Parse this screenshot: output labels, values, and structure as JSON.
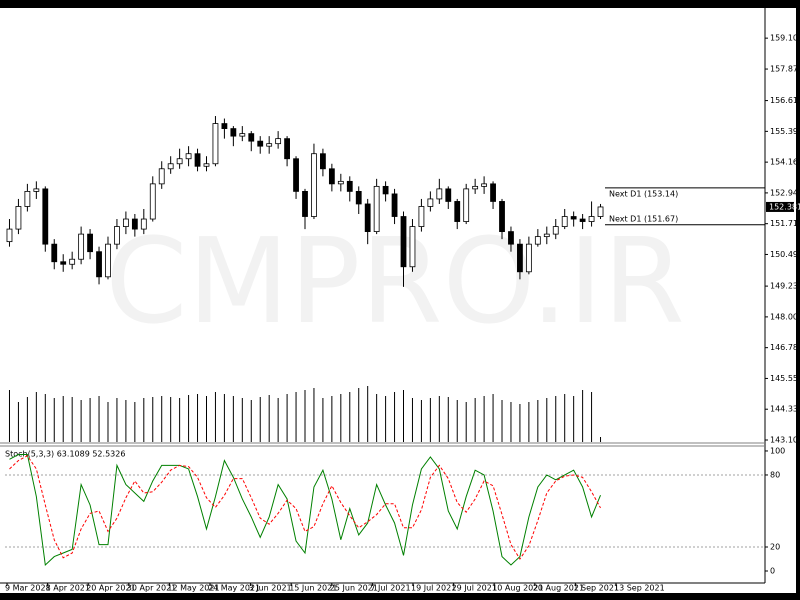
{
  "chart_data": [
    {
      "type": "candlestick",
      "watermark": "CMPRO.IR",
      "open": [
        151.0,
        151.5,
        152.4,
        153.0,
        153.1,
        150.9,
        150.2,
        150.1,
        150.3,
        151.3,
        150.6,
        149.6,
        150.9,
        151.6,
        151.9,
        151.5,
        151.9,
        153.3,
        153.9,
        154.1,
        154.3,
        154.5,
        154.0,
        154.1,
        155.7,
        155.5,
        155.2,
        155.3,
        155.0,
        154.8,
        154.9,
        155.1,
        154.3,
        153.0,
        152.0,
        154.5,
        153.9,
        153.3,
        153.4,
        153.0,
        152.5,
        151.4,
        153.2,
        152.9,
        152.0,
        150.0,
        151.6,
        152.4,
        152.7,
        153.1,
        152.6,
        151.8,
        153.1,
        153.2,
        153.3,
        152.6,
        151.4,
        150.9,
        149.8,
        150.9,
        151.2,
        151.3,
        151.6,
        152.0,
        151.9,
        151.8,
        152.0
      ],
      "high": [
        151.9,
        152.7,
        153.3,
        153.4,
        153.2,
        151.1,
        150.5,
        150.6,
        151.6,
        151.5,
        150.8,
        151.2,
        151.9,
        152.2,
        152.1,
        152.3,
        153.6,
        154.2,
        154.4,
        154.7,
        154.8,
        154.7,
        154.4,
        156.0,
        155.9,
        155.6,
        155.6,
        155.4,
        155.2,
        155.2,
        155.4,
        155.2,
        154.4,
        153.1,
        154.9,
        154.7,
        154.1,
        153.7,
        153.6,
        153.2,
        152.7,
        153.5,
        153.4,
        153.1,
        152.2,
        151.9,
        152.7,
        153.0,
        153.5,
        153.2,
        152.7,
        153.3,
        153.5,
        153.6,
        153.4,
        152.7,
        151.6,
        151.1,
        151.2,
        151.5,
        151.6,
        151.9,
        152.3,
        152.2,
        152.1,
        152.6,
        152.5
      ],
      "low": [
        150.8,
        151.3,
        152.2,
        152.7,
        150.6,
        149.9,
        149.8,
        149.9,
        150.1,
        150.3,
        149.3,
        149.5,
        150.7,
        151.3,
        151.2,
        151.3,
        151.8,
        153.1,
        153.7,
        153.9,
        154.0,
        153.8,
        153.8,
        154.0,
        155.1,
        154.8,
        155.0,
        154.6,
        154.5,
        154.5,
        154.7,
        154.0,
        152.7,
        151.5,
        151.9,
        153.6,
        153.0,
        153.0,
        152.6,
        152.1,
        150.9,
        151.3,
        152.6,
        151.7,
        149.2,
        149.8,
        151.4,
        152.2,
        152.5,
        152.3,
        151.5,
        151.7,
        152.9,
        152.9,
        152.3,
        151.1,
        150.6,
        149.5,
        149.7,
        150.8,
        150.9,
        151.1,
        151.5,
        151.6,
        151.5,
        151.6,
        151.9
      ],
      "close": [
        151.5,
        152.4,
        153.0,
        153.1,
        150.9,
        150.2,
        150.1,
        150.3,
        151.3,
        150.6,
        149.6,
        150.9,
        151.6,
        151.9,
        151.5,
        151.9,
        153.3,
        153.9,
        154.1,
        154.3,
        154.5,
        154.0,
        154.1,
        155.7,
        155.5,
        155.2,
        155.3,
        155.0,
        154.8,
        154.9,
        155.1,
        154.3,
        153.0,
        152.0,
        154.5,
        153.9,
        153.3,
        153.4,
        153.0,
        152.5,
        151.4,
        153.2,
        152.9,
        152.0,
        150.0,
        151.6,
        152.4,
        152.7,
        153.1,
        152.6,
        151.8,
        153.1,
        153.2,
        153.3,
        152.6,
        151.4,
        150.9,
        149.8,
        150.9,
        151.2,
        151.3,
        151.6,
        152.0,
        151.9,
        151.8,
        152.0,
        152.381
      ],
      "volume": [
        52,
        40,
        45,
        50,
        48,
        44,
        46,
        45,
        42,
        44,
        46,
        40,
        44,
        42,
        40,
        44,
        45,
        46,
        45,
        44,
        47,
        48,
        46,
        50,
        48,
        46,
        44,
        42,
        45,
        47,
        44,
        48,
        50,
        52,
        54,
        44,
        46,
        48,
        50,
        54,
        56,
        48,
        46,
        50,
        52,
        44,
        42,
        44,
        46,
        45,
        42,
        40,
        44,
        46,
        48,
        42,
        40,
        38,
        40,
        42,
        44,
        46,
        48,
        46,
        52,
        50,
        5
      ],
      "volume_lim": [
        0,
        100
      ],
      "ylim": [
        143.025,
        160.3
      ],
      "yticks": [
        {
          "value": 159.1,
          "label": "159.100"
        },
        {
          "value": 157.87,
          "label": "157.870"
        },
        {
          "value": 156.615,
          "label": "156.615"
        },
        {
          "value": 155.39,
          "label": "155.390"
        },
        {
          "value": 154.165,
          "label": "154.165"
        },
        {
          "value": 152.94,
          "label": "152.940"
        },
        {
          "value": 151.715,
          "label": "151.715"
        },
        {
          "value": 150.49,
          "label": "150.490"
        },
        {
          "value": 149.23,
          "label": "149.230"
        },
        {
          "value": 148.005,
          "label": "148.005"
        },
        {
          "value": 146.78,
          "label": "146.780"
        },
        {
          "value": 145.555,
          "label": "145.555"
        },
        {
          "value": 144.33,
          "label": "144.330"
        },
        {
          "value": 143.105,
          "label": "143.105"
        }
      ],
      "price_label": {
        "value": 152.381,
        "label": "152.381"
      },
      "levels": [
        {
          "value": 153.14,
          "label": "Next D1 (153.14)"
        },
        {
          "value": 151.67,
          "label": "Next D1 (151.67)"
        }
      ],
      "x_labels": [
        "9 Mar 2021",
        "8 Apr 2021",
        "20 Apr 2021",
        "30 Apr 2021",
        "12 May 2021",
        "24 May 2021",
        "3 Jun 2021",
        "15 Jun 2021",
        "25 Jun 2021",
        "7 Jul 2021",
        "19 Jul 2021",
        "29 Jul 2021",
        "10 Aug 2021",
        "20 Aug 2021",
        "1 Sep 2021",
        "13 Sep 2021"
      ]
    },
    {
      "type": "line",
      "title": "Stoch(5,3,3) 63.1089 52.5326",
      "ylim": [
        -10,
        103.3
      ],
      "yticks": [
        0,
        20,
        80,
        100
      ],
      "levels": [
        20,
        80
      ],
      "series": [
        {
          "color": "#008000",
          "values": [
            93,
            97,
            97,
            62,
            5,
            12,
            15,
            18,
            72,
            55,
            22,
            22,
            88,
            72,
            65,
            58,
            75,
            88,
            88,
            88,
            85,
            62,
            35,
            62,
            92,
            78,
            60,
            45,
            28,
            45,
            72,
            60,
            25,
            15,
            70,
            84,
            60,
            26,
            52,
            30,
            40,
            72,
            55,
            40,
            13,
            55,
            85,
            95,
            85,
            50,
            35,
            62,
            84,
            80,
            50,
            12,
            5,
            12,
            45,
            70,
            80,
            76,
            80,
            84,
            70,
            45,
            63.1089
          ]
        },
        {
          "color": "#ff0000",
          "values": [
            85,
            92,
            96,
            85,
            55,
            26,
            11,
            15,
            35,
            48,
            50,
            33,
            44,
            61,
            75,
            65,
            66,
            74,
            84,
            88,
            87,
            78,
            61,
            53,
            63,
            77,
            77,
            61,
            44,
            39,
            48,
            59,
            52,
            33,
            37,
            56,
            71,
            57,
            46,
            36,
            41,
            47,
            56,
            56,
            36,
            36,
            51,
            78,
            88,
            77,
            57,
            49,
            60,
            75,
            71,
            47,
            22,
            10,
            21,
            42,
            65,
            75,
            79,
            80,
            78,
            66,
            52.5326
          ]
        }
      ]
    }
  ]
}
